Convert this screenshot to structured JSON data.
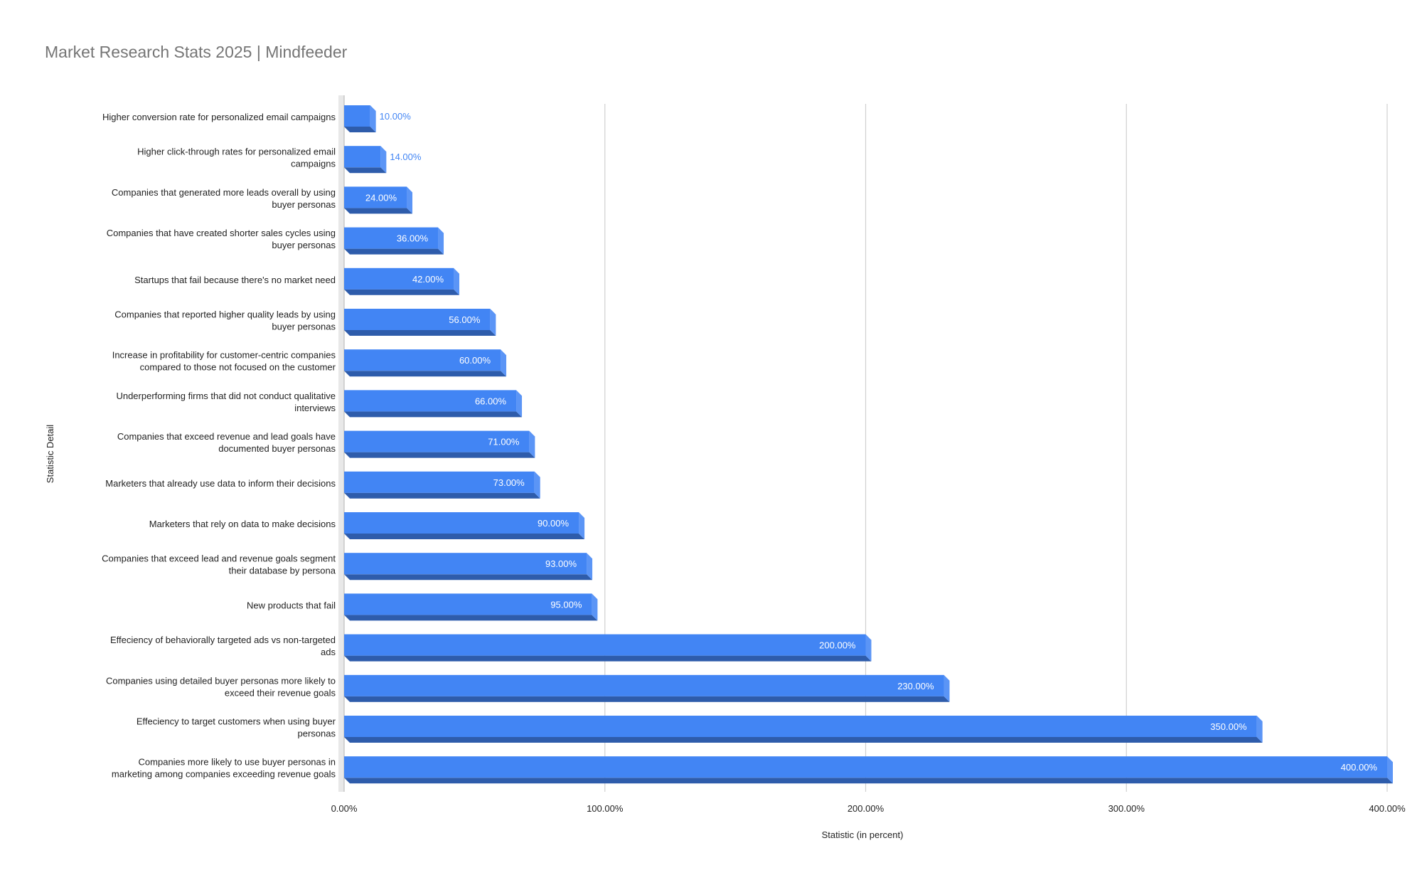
{
  "chart_data": {
    "type": "bar",
    "orientation": "horizontal",
    "title": "Market Research Stats 2025 | Mindfeeder",
    "xlabel": "Statistic (in percent)",
    "ylabel": "Statistic Detail",
    "xlim": [
      0,
      400
    ],
    "xticks": [
      0,
      100,
      200,
      300,
      400
    ],
    "xtick_labels": [
      "0.00%",
      "100.00%",
      "200.00%",
      "300.00%",
      "400.00%"
    ],
    "grid": "vertical",
    "legend": "none",
    "bar_style": "3d",
    "bar_color": "#4285f4",
    "bar_top_color": "#5b95f6",
    "bar_shadow_color": "#2e5cab",
    "value_label_color": "#ffffff",
    "outside_label_color": "#4285f4",
    "categories": [
      "Higher conversion rate for personalized email campaigns",
      "Higher click-through rates for personalized email campaigns",
      "Companies that generated more leads overall by using buyer personas",
      "Companies that have created shorter sales cycles using buyer personas",
      "Startups that fail because there's no market need",
      "Companies that reported higher quality leads by using buyer personas",
      "Increase in profitability for customer-centric companies compared to those not focused on the customer",
      "Underperforming firms that did not conduct qualitative interviews",
      "Companies that exceed revenue and lead goals have documented buyer personas",
      "Marketers that already use data to inform their decisions",
      "Marketers that rely on data to make decisions",
      "Companies that exceed lead and revenue goals segment their database by persona",
      "New products that fail",
      "Effeciency of behaviorally targeted ads vs non-targeted ads",
      "Companies using detailed buyer personas more likely to exceed their revenue goals",
      "Effeciency to target customers when using buyer personas",
      "Companies more likely to use buyer personas in marketing among companies exceeding revenue goals"
    ],
    "category_label_lines": [
      [
        "Higher conversion rate for personalized email campaigns"
      ],
      [
        "Higher click-through rates for personalized email",
        "campaigns"
      ],
      [
        "Companies that generated more leads overall by using",
        "buyer personas"
      ],
      [
        "Companies that have created shorter sales cycles using",
        "buyer personas"
      ],
      [
        "Startups that fail because there's no market need"
      ],
      [
        "Companies that reported higher quality leads by using",
        "buyer personas"
      ],
      [
        "Increase in profitability for customer-centric companies",
        "compared to those not focused on the customer"
      ],
      [
        "Underperforming firms that did not conduct qualitative",
        "interviews"
      ],
      [
        "Companies that exceed revenue and lead goals have",
        "documented buyer personas"
      ],
      [
        "Marketers that already use data to inform their decisions"
      ],
      [
        "Marketers that rely on data to make decisions"
      ],
      [
        "Companies that exceed lead and revenue goals segment",
        "their database by persona"
      ],
      [
        "New products that fail"
      ],
      [
        "Effeciency of behaviorally targeted ads vs non-targeted",
        "ads"
      ],
      [
        "Companies using detailed buyer personas more likely to",
        "exceed their revenue goals"
      ],
      [
        "Effeciency to target customers when using buyer",
        "personas"
      ],
      [
        "Companies more likely to use buyer personas in",
        "marketing among companies exceeding revenue goals"
      ]
    ],
    "values": [
      10,
      14,
      24,
      36,
      42,
      56,
      60,
      66,
      71,
      73,
      90,
      93,
      95,
      200,
      230,
      350,
      400
    ],
    "value_labels": [
      "10.00%",
      "14.00%",
      "24.00%",
      "36.00%",
      "42.00%",
      "56.00%",
      "60.00%",
      "66.00%",
      "71.00%",
      "73.00%",
      "90.00%",
      "93.00%",
      "95.00%",
      "200.00%",
      "230.00%",
      "350.00%",
      "400.00%"
    ]
  }
}
